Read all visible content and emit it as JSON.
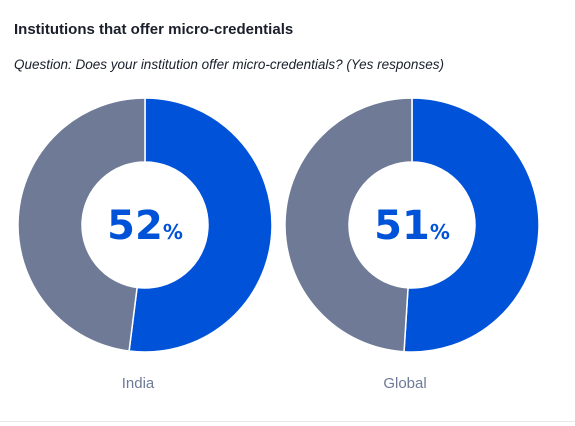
{
  "title": "Institutions that offer micro-credentials",
  "subtitle": "Question: Does your institution offer micro-credentials? (Yes responses)",
  "colors": {
    "yes": "#0052d9",
    "remainder": "#6e7a96",
    "label": "#6e7a96",
    "value_text": "#0052d9"
  },
  "chart_data": [
    {
      "type": "pie",
      "label": "India",
      "values": [
        52,
        48
      ],
      "display_value": "52",
      "unit": "%"
    },
    {
      "type": "pie",
      "label": "Global",
      "values": [
        51,
        49
      ],
      "display_value": "51",
      "unit": "%"
    }
  ]
}
